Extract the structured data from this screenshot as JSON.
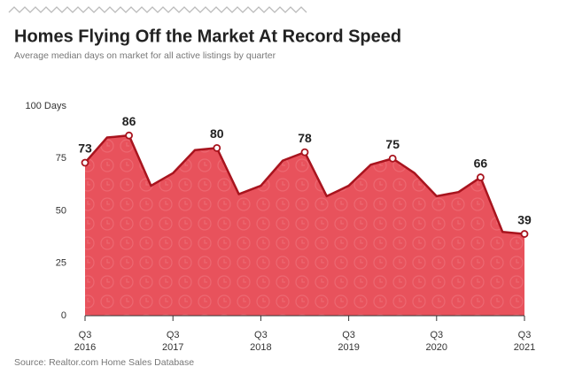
{
  "chart_data": {
    "type": "area",
    "title": "Homes Flying Off the Market At Record Speed",
    "subtitle": "Average median days on market for all active listings by quarter",
    "source": "Source: Realtor.com Home Sales Database",
    "categories": [
      "Q3 2016",
      null,
      null,
      null,
      "Q3 2017",
      null,
      null,
      null,
      "Q3 2018",
      null,
      null,
      null,
      "Q3 2019",
      null,
      null,
      null,
      "Q3 2020",
      null,
      null,
      null,
      "Q3 2021"
    ],
    "series": [
      {
        "name": "Average median days on market",
        "color": "#a8141e",
        "fill": "#e8525c",
        "values": [
          73,
          85,
          86,
          62,
          68,
          79,
          80,
          58,
          62,
          74,
          78,
          57,
          62,
          72,
          75,
          68,
          57,
          59,
          66,
          40,
          39
        ],
        "value_labels": [
          73,
          null,
          86,
          null,
          null,
          null,
          80,
          null,
          null,
          null,
          78,
          null,
          null,
          null,
          75,
          null,
          null,
          null,
          66,
          null,
          39
        ]
      }
    ],
    "ylim": [
      0,
      100
    ],
    "yticks": [
      0,
      25,
      50,
      75,
      {
        "value": 100,
        "label": "100 Days"
      }
    ],
    "grid": false
  }
}
